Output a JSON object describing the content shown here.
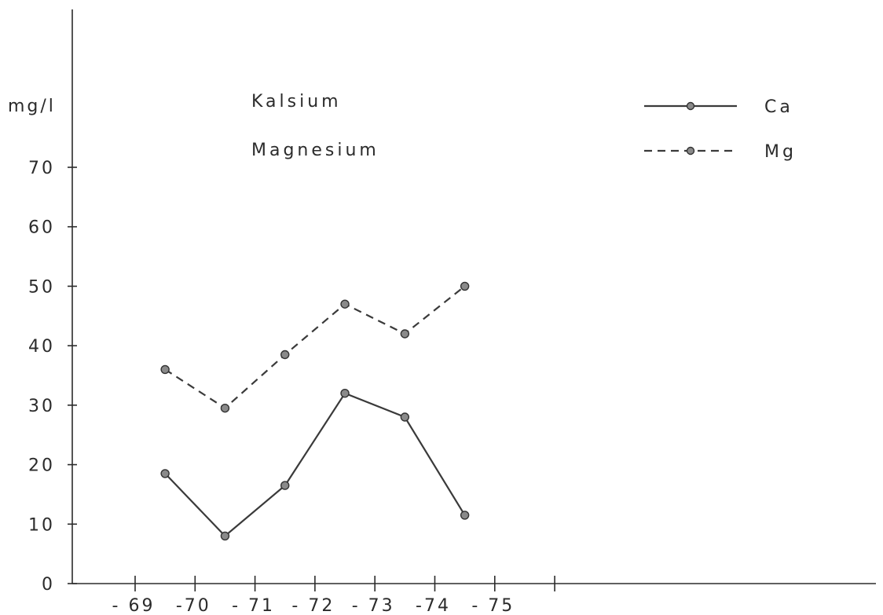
{
  "chart_data": {
    "type": "line",
    "ylabel": "mg/l",
    "ylim": [
      0,
      70
    ],
    "yticks": [
      0,
      10,
      20,
      30,
      40,
      50,
      60,
      70
    ],
    "ytick_labels": [
      "0",
      "10",
      "20",
      "30",
      "40",
      "50",
      "60",
      "70"
    ],
    "x_tick_labels": [
      "- 69",
      "-70",
      "- 71",
      "- 72",
      "- 73",
      "-74",
      "- 75"
    ],
    "x": [
      1969.5,
      1970.5,
      1971.5,
      1972.5,
      1973.5,
      1974.5
    ],
    "annotations": [
      "Kalsium",
      "Magnesium"
    ],
    "legend_position": "top-right",
    "grid": false,
    "series": [
      {
        "name": "Ca",
        "style": "solid",
        "values": [
          18.5,
          8,
          16.5,
          32,
          28,
          11.5
        ]
      },
      {
        "name": "Mg",
        "style": "dashed",
        "values": [
          36,
          29.5,
          38.5,
          47,
          42,
          50
        ]
      }
    ]
  }
}
